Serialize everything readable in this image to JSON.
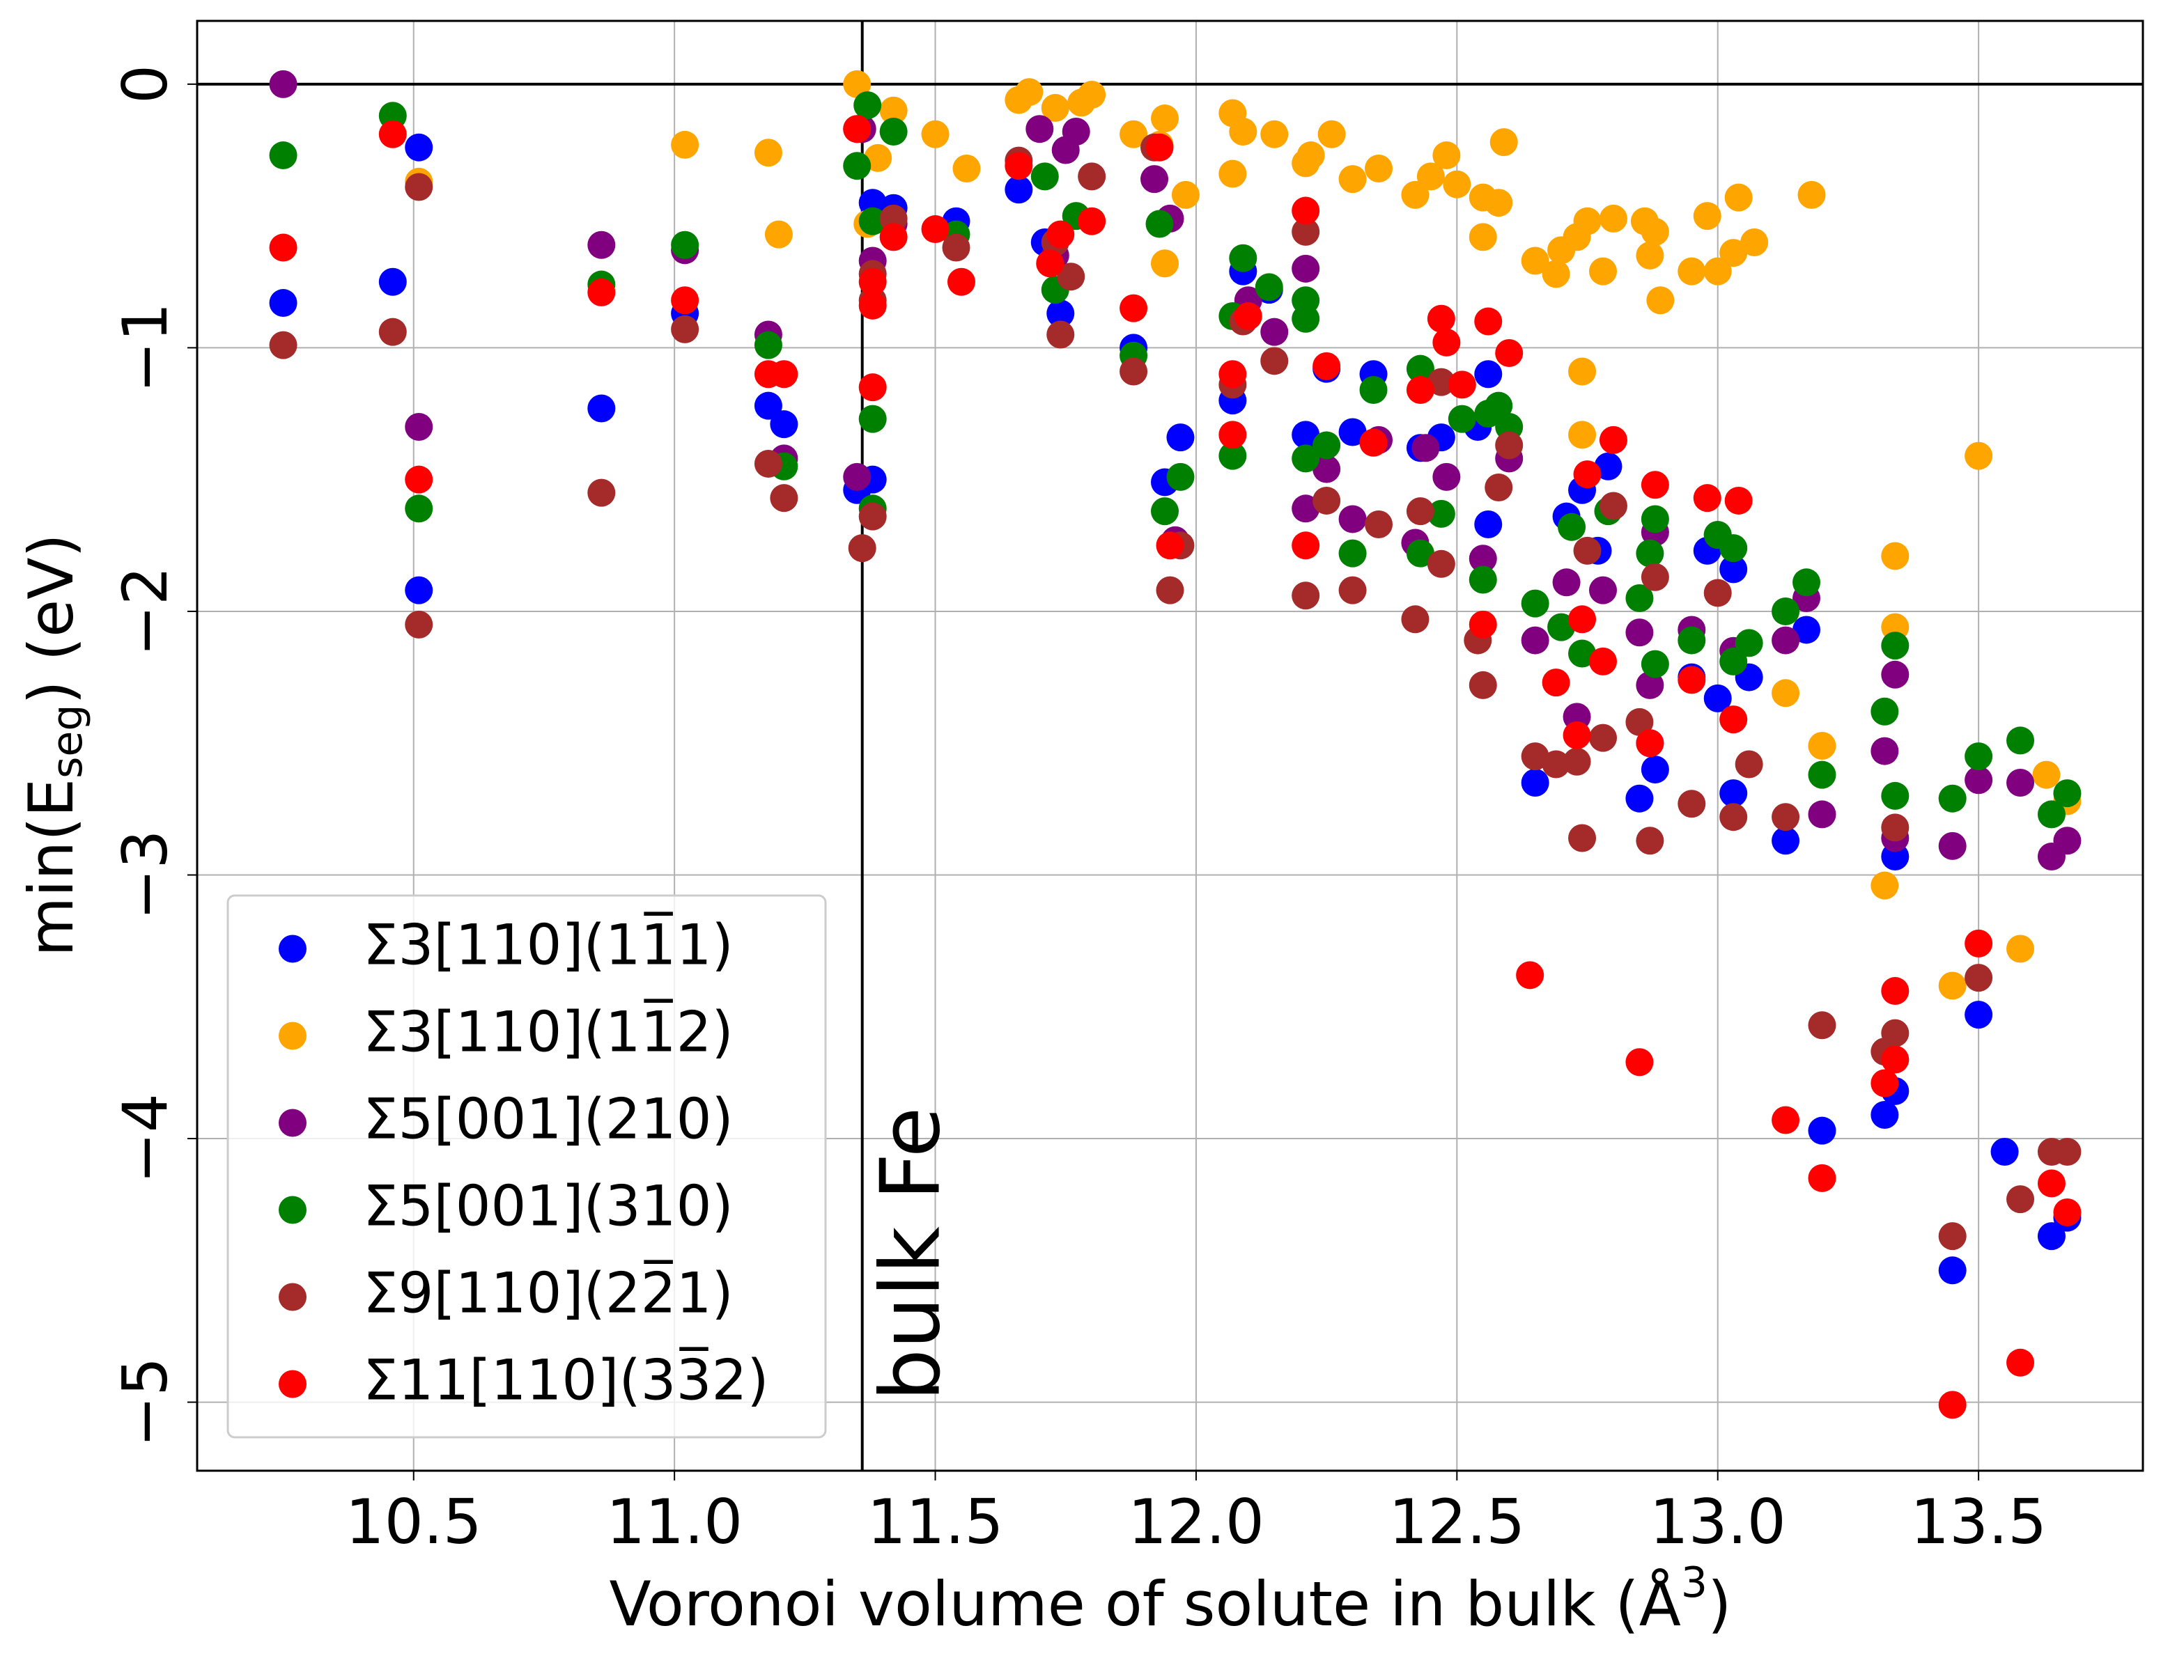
{
  "chart_data": {
    "type": "scatter",
    "x_label": [
      "Voronoi volume of solute in bulk (Å",
      "3",
      ")"
    ],
    "y_label": [
      "min(E",
      "seg",
      ") (eV)"
    ],
    "xlim": [
      10.085,
      13.815
    ],
    "ylim": [
      -5.26,
      0.24
    ],
    "xticks": [
      10.5,
      {
        "value": 11,
        "label": "11.0"
      },
      11.5,
      {
        "value": 12,
        "label": "12.0"
      },
      12.5,
      {
        "value": 13,
        "label": "13.0"
      },
      13.5
    ],
    "yticks": [
      {
        "value": 0,
        "label": "0"
      },
      {
        "value": -1,
        "label": "−1"
      },
      {
        "value": -2,
        "label": "−2"
      },
      {
        "value": -3,
        "label": "−3"
      },
      {
        "value": -4,
        "label": "−4"
      },
      {
        "value": -5,
        "label": "−5"
      }
    ],
    "grid": true,
    "legend": "lower left",
    "hline": 0,
    "vline": 11.36,
    "annotation": "bulk Fe",
    "series": [
      {
        "name": "Σ3[110](11̅1)",
        "color": "#0000ff",
        "x": [
          10.25,
          10.46,
          10.51,
          10.51,
          10.86,
          11.02,
          11.18,
          11.21,
          11.35,
          11.38,
          11.38,
          11.42,
          11.54,
          11.66,
          11.71,
          11.74,
          11.88,
          11.97,
          11.94,
          12.07,
          12.09,
          12.14,
          12.21,
          12.25,
          12.3,
          12.34,
          12.43,
          12.47,
          12.54,
          12.56,
          12.56,
          12.71,
          12.74,
          12.77,
          12.79,
          12.85,
          12.87,
          12.88,
          12.95,
          12.98,
          13.0,
          13.03,
          13.03,
          13.06,
          13.13,
          13.17,
          13.2,
          13.32,
          13.34,
          13.34,
          13.45,
          13.5,
          13.55,
          13.64,
          13.67,
          12.65
        ],
        "values": [
          -0.83,
          -0.75,
          -0.24,
          -1.92,
          -1.23,
          -0.87,
          -1.22,
          -1.29,
          -1.54,
          -1.5,
          -0.45,
          -0.47,
          -0.52,
          -0.4,
          -0.6,
          -0.87,
          -1.0,
          -1.34,
          -1.51,
          -1.2,
          -0.71,
          -0.78,
          -1.33,
          -1.08,
          -1.32,
          -1.1,
          -1.38,
          -1.34,
          -1.3,
          -1.67,
          -1.1,
          -1.64,
          -1.54,
          -1.77,
          -1.45,
          -2.71,
          -2.5,
          -2.6,
          -2.25,
          -1.77,
          -2.33,
          -2.69,
          -1.84,
          -2.25,
          -2.87,
          -2.07,
          -3.97,
          -3.91,
          -2.93,
          -3.82,
          -4.5,
          -3.53,
          -4.05,
          -4.37,
          -4.3,
          -2.65
        ]
      },
      {
        "name": "Σ3[110](11̅2)",
        "color": "#ffa500",
        "x": [
          11.35,
          11.37,
          11.42,
          11.39,
          11.02,
          11.18,
          11.2,
          11.5,
          11.66,
          11.68,
          11.73,
          11.78,
          11.8,
          11.88,
          11.93,
          11.94,
          11.94,
          11.98,
          12.07,
          12.09,
          12.07,
          12.15,
          12.21,
          12.22,
          12.26,
          12.3,
          12.35,
          12.42,
          12.45,
          12.48,
          12.5,
          12.55,
          12.55,
          12.58,
          12.59,
          12.65,
          12.69,
          12.7,
          12.73,
          12.74,
          12.75,
          12.78,
          12.8,
          12.86,
          12.87,
          12.88,
          12.89,
          12.95,
          12.98,
          13.0,
          13.03,
          13.04,
          13.07,
          13.18,
          13.13,
          13.2,
          13.32,
          13.34,
          13.34,
          13.45,
          13.5,
          13.58,
          13.63,
          13.67,
          12.74,
          10.51,
          11.56
        ],
        "values": [
          0.0,
          -0.53,
          -0.1,
          -0.28,
          -0.23,
          -0.26,
          -0.57,
          -0.19,
          -0.06,
          -0.03,
          -0.09,
          -0.07,
          -0.04,
          -0.19,
          -0.23,
          -0.13,
          -0.68,
          -0.42,
          -0.11,
          -0.18,
          -0.34,
          -0.19,
          -0.3,
          -0.27,
          -0.19,
          -0.36,
          -0.32,
          -0.42,
          -0.35,
          -0.27,
          -0.38,
          -0.43,
          -0.58,
          -0.45,
          -0.22,
          -0.67,
          -0.72,
          -0.63,
          -0.58,
          -1.09,
          -0.52,
          -0.71,
          -0.51,
          -0.52,
          -0.65,
          -0.56,
          -0.82,
          -0.71,
          -0.5,
          -0.71,
          -0.64,
          -0.43,
          -0.6,
          -0.42,
          -2.31,
          -2.51,
          -3.04,
          -1.79,
          -2.06,
          -3.42,
          -1.41,
          -3.28,
          -2.62,
          -2.72,
          -1.33,
          -0.37,
          -0.32
        ]
      },
      {
        "name": "Σ5[001](210)",
        "color": "#800080",
        "x": [
          10.25,
          10.51,
          10.86,
          11.02,
          11.18,
          11.21,
          11.35,
          11.36,
          11.38,
          11.42,
          11.7,
          11.75,
          11.77,
          11.73,
          11.92,
          11.95,
          11.96,
          12.1,
          12.15,
          12.21,
          12.21,
          12.25,
          12.3,
          12.35,
          12.42,
          12.44,
          12.48,
          12.55,
          12.6,
          12.65,
          12.71,
          12.73,
          12.78,
          12.85,
          12.87,
          12.88,
          12.95,
          13.0,
          13.03,
          13.13,
          13.17,
          13.2,
          13.32,
          13.34,
          13.34,
          13.45,
          13.5,
          13.58,
          13.64,
          13.67
        ],
        "values": [
          0.0,
          -1.3,
          -0.61,
          -0.63,
          -0.95,
          -1.42,
          -1.49,
          -0.17,
          -0.67,
          -0.53,
          -0.17,
          -0.25,
          -0.18,
          -0.65,
          -0.36,
          -0.51,
          -1.73,
          -0.82,
          -0.94,
          -1.61,
          -0.7,
          -1.46,
          -1.65,
          -1.35,
          -1.74,
          -1.38,
          -1.49,
          -1.8,
          -1.42,
          -2.11,
          -1.89,
          -2.4,
          -1.92,
          -2.08,
          -2.28,
          -1.7,
          -2.07,
          -1.71,
          -2.15,
          -2.11,
          -1.95,
          -2.77,
          -2.53,
          -2.24,
          -2.86,
          -2.89,
          -2.64,
          -2.65,
          -2.93,
          -2.87
        ]
      },
      {
        "name": "Σ5[001](310)",
        "color": "#008000",
        "x": [
          10.25,
          10.46,
          10.51,
          10.86,
          11.02,
          11.18,
          11.21,
          11.35,
          11.37,
          11.38,
          11.38,
          11.38,
          11.42,
          11.54,
          11.71,
          11.73,
          11.77,
          11.88,
          11.93,
          11.94,
          11.97,
          12.07,
          12.09,
          12.07,
          12.14,
          12.21,
          12.21,
          12.21,
          12.25,
          12.3,
          12.34,
          12.43,
          12.43,
          12.47,
          12.51,
          12.55,
          12.56,
          12.58,
          12.6,
          12.65,
          12.7,
          12.72,
          12.74,
          12.79,
          12.85,
          12.87,
          12.88,
          12.88,
          12.95,
          13.0,
          13.03,
          13.03,
          13.06,
          13.13,
          13.17,
          13.2,
          13.32,
          13.34,
          13.34,
          13.45,
          13.5,
          13.58,
          13.64,
          13.67
        ],
        "values": [
          -0.27,
          -0.12,
          -1.61,
          -0.76,
          -0.61,
          -0.99,
          -1.45,
          -0.31,
          -0.08,
          -1.27,
          -1.61,
          -0.52,
          -0.18,
          -0.57,
          -0.35,
          -0.78,
          -0.5,
          -1.03,
          -0.53,
          -1.62,
          -1.49,
          -0.88,
          -0.66,
          -1.41,
          -0.77,
          -0.82,
          -0.89,
          -1.42,
          -1.37,
          -1.78,
          -1.16,
          -1.08,
          -1.78,
          -1.63,
          -1.27,
          -1.88,
          -1.25,
          -1.22,
          -1.3,
          -1.97,
          -2.06,
          -1.68,
          -2.16,
          -1.62,
          -1.95,
          -1.78,
          -2.2,
          -1.65,
          -2.11,
          -1.71,
          -1.76,
          -2.19,
          -2.12,
          -2.0,
          -1.89,
          -2.62,
          -2.38,
          -2.13,
          -2.7,
          -2.71,
          -2.55,
          -2.49,
          -2.77,
          -2.69
        ]
      },
      {
        "name": "Σ9[110](22̅1)",
        "color": "#a52a2a",
        "x": [
          10.25,
          10.46,
          10.51,
          10.51,
          10.86,
          11.02,
          11.18,
          11.21,
          11.35,
          11.36,
          11.38,
          11.38,
          11.38,
          11.42,
          11.54,
          11.66,
          11.73,
          11.74,
          11.76,
          11.8,
          11.88,
          11.92,
          11.95,
          11.97,
          12.07,
          12.09,
          12.15,
          12.21,
          12.21,
          12.25,
          12.3,
          12.34,
          12.35,
          12.42,
          12.43,
          12.47,
          12.47,
          12.54,
          12.55,
          12.58,
          12.6,
          12.65,
          12.69,
          12.73,
          12.74,
          12.75,
          12.78,
          12.8,
          12.85,
          12.87,
          12.88,
          12.95,
          13.0,
          13.03,
          13.06,
          13.13,
          13.2,
          13.32,
          13.34,
          13.34,
          13.45,
          13.5,
          13.58,
          13.64,
          13.67
        ],
        "values": [
          -0.99,
          -0.94,
          -0.39,
          -2.05,
          -1.55,
          -0.93,
          -1.44,
          -1.57,
          -0.17,
          -1.76,
          -0.82,
          -0.72,
          -1.64,
          -0.51,
          -0.62,
          -0.29,
          -0.6,
          -0.95,
          -0.73,
          -0.35,
          -1.09,
          -0.24,
          -1.92,
          -1.75,
          -1.14,
          -0.9,
          -1.05,
          -1.94,
          -0.56,
          -1.58,
          -1.92,
          -1.36,
          -1.67,
          -2.03,
          -1.62,
          -1.82,
          -1.13,
          -2.11,
          -2.28,
          -1.53,
          -1.37,
          -2.55,
          -2.58,
          -2.57,
          -2.86,
          -1.77,
          -2.48,
          -1.6,
          -2.42,
          -2.87,
          -1.87,
          -2.73,
          -1.93,
          -2.78,
          -2.58,
          -2.78,
          -3.57,
          -3.67,
          -3.6,
          -2.82,
          -4.37,
          -3.39,
          -4.23,
          -4.05,
          -4.05
        ]
      },
      {
        "name": "Σ11[110](33̅2)",
        "color": "#ff0000",
        "x": [
          10.25,
          10.46,
          10.51,
          10.86,
          11.02,
          11.18,
          11.21,
          11.35,
          11.38,
          11.38,
          11.38,
          11.42,
          11.5,
          11.55,
          11.66,
          11.72,
          11.74,
          11.8,
          11.88,
          11.95,
          11.93,
          12.07,
          12.07,
          12.1,
          12.21,
          12.21,
          12.25,
          12.34,
          12.43,
          12.47,
          12.48,
          12.51,
          12.55,
          12.56,
          12.6,
          12.64,
          12.69,
          12.73,
          12.74,
          12.75,
          12.78,
          12.8,
          12.85,
          12.87,
          12.88,
          12.95,
          12.98,
          13.03,
          13.04,
          13.13,
          13.2,
          13.32,
          13.34,
          13.34,
          13.45,
          13.5,
          13.58,
          13.64,
          13.67
        ],
        "values": [
          -0.62,
          -0.19,
          -1.5,
          -0.79,
          -0.82,
          -1.1,
          -1.1,
          -0.17,
          -0.84,
          -1.15,
          -0.75,
          -0.58,
          -0.55,
          -0.75,
          -0.31,
          -0.68,
          -0.57,
          -0.52,
          -0.85,
          -1.75,
          -0.24,
          -1.1,
          -1.33,
          -0.88,
          -1.75,
          -0.48,
          -1.07,
          -1.36,
          -1.16,
          -0.89,
          -0.98,
          -1.14,
          -2.05,
          -0.9,
          -1.02,
          -3.38,
          -2.27,
          -2.47,
          -2.03,
          -1.48,
          -2.19,
          -1.35,
          -3.71,
          -2.5,
          -1.52,
          -2.26,
          -1.57,
          -2.41,
          -1.58,
          -3.93,
          -4.15,
          -3.79,
          -3.44,
          -3.7,
          -5.01,
          -3.26,
          -4.85,
          -4.17,
          -4.28
        ]
      }
    ]
  }
}
